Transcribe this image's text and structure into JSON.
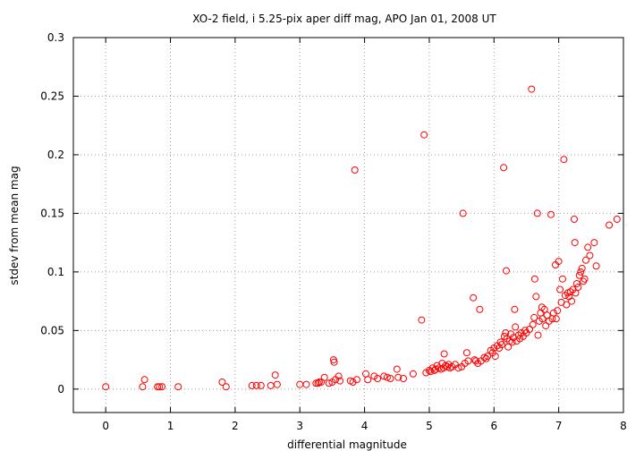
{
  "chart_data": {
    "type": "scatter",
    "title": "XO-2 field, i 5.25-pix aper diff mag, APO Jan 01, 2008 UT",
    "xlabel": "differential magnitude",
    "ylabel": "stdev from mean mag",
    "xlim": [
      -0.5,
      8
    ],
    "ylim": [
      -0.02,
      0.3
    ],
    "xticks": [
      0,
      1,
      2,
      3,
      4,
      5,
      6,
      7,
      8
    ],
    "yticks": [
      0,
      0.05,
      0.1,
      0.15,
      0.2,
      0.25,
      0.3
    ],
    "xtick_labels": [
      "0",
      "1",
      "2",
      "3",
      "4",
      "5",
      "6",
      "7",
      "8"
    ],
    "ytick_labels": [
      "0",
      "0.05",
      "0.1",
      "0.15",
      "0.2",
      "0.25",
      "0.3"
    ],
    "grid": true,
    "marker": "open-circle",
    "color": "#ff0000",
    "series": [
      {
        "points": [
          [
            0.0,
            0.002
          ],
          [
            0.57,
            0.002
          ],
          [
            0.6,
            0.008
          ],
          [
            0.8,
            0.002
          ],
          [
            0.83,
            0.002
          ],
          [
            0.87,
            0.002
          ],
          [
            1.12,
            0.002
          ],
          [
            1.8,
            0.006
          ],
          [
            1.86,
            0.002
          ],
          [
            2.26,
            0.003
          ],
          [
            2.33,
            0.003
          ],
          [
            2.4,
            0.003
          ],
          [
            2.55,
            0.003
          ],
          [
            2.62,
            0.012
          ],
          [
            2.65,
            0.004
          ],
          [
            3.0,
            0.004
          ],
          [
            3.1,
            0.004
          ],
          [
            3.25,
            0.005
          ],
          [
            3.28,
            0.005
          ],
          [
            3.3,
            0.006
          ],
          [
            3.33,
            0.006
          ],
          [
            3.38,
            0.01
          ],
          [
            3.45,
            0.005
          ],
          [
            3.5,
            0.006
          ],
          [
            3.52,
            0.025
          ],
          [
            3.53,
            0.023
          ],
          [
            3.55,
            0.008
          ],
          [
            3.6,
            0.011
          ],
          [
            3.62,
            0.007
          ],
          [
            3.78,
            0.007
          ],
          [
            3.82,
            0.006
          ],
          [
            3.85,
            0.187
          ],
          [
            3.88,
            0.008
          ],
          [
            4.02,
            0.013
          ],
          [
            4.05,
            0.008
          ],
          [
            4.15,
            0.011
          ],
          [
            4.2,
            0.009
          ],
          [
            4.3,
            0.011
          ],
          [
            4.35,
            0.01
          ],
          [
            4.4,
            0.009
          ],
          [
            4.5,
            0.017
          ],
          [
            4.52,
            0.01
          ],
          [
            4.6,
            0.009
          ],
          [
            4.75,
            0.013
          ],
          [
            4.88,
            0.059
          ],
          [
            4.92,
            0.217
          ],
          [
            4.95,
            0.014
          ],
          [
            5.0,
            0.016
          ],
          [
            5.02,
            0.015
          ],
          [
            5.05,
            0.018
          ],
          [
            5.08,
            0.016
          ],
          [
            5.1,
            0.017
          ],
          [
            5.12,
            0.02
          ],
          [
            5.15,
            0.018
          ],
          [
            5.18,
            0.017
          ],
          [
            5.2,
            0.022
          ],
          [
            5.22,
            0.018
          ],
          [
            5.23,
            0.03
          ],
          [
            5.25,
            0.02
          ],
          [
            5.28,
            0.019
          ],
          [
            5.3,
            0.021
          ],
          [
            5.32,
            0.018
          ],
          [
            5.35,
            0.019
          ],
          [
            5.4,
            0.021
          ],
          [
            5.45,
            0.018
          ],
          [
            5.5,
            0.019
          ],
          [
            5.52,
            0.15
          ],
          [
            5.55,
            0.022
          ],
          [
            5.58,
            0.031
          ],
          [
            5.6,
            0.024
          ],
          [
            5.68,
            0.078
          ],
          [
            5.7,
            0.025
          ],
          [
            5.72,
            0.024
          ],
          [
            5.75,
            0.022
          ],
          [
            5.78,
            0.068
          ],
          [
            5.8,
            0.024
          ],
          [
            5.85,
            0.027
          ],
          [
            5.88,
            0.026
          ],
          [
            5.9,
            0.028
          ],
          [
            5.95,
            0.033
          ],
          [
            5.98,
            0.031
          ],
          [
            6.0,
            0.035
          ],
          [
            6.02,
            0.028
          ],
          [
            6.05,
            0.037
          ],
          [
            6.08,
            0.035
          ],
          [
            6.1,
            0.04
          ],
          [
            6.12,
            0.038
          ],
          [
            6.15,
            0.189
          ],
          [
            6.16,
            0.045
          ],
          [
            6.18,
            0.048
          ],
          [
            6.19,
            0.101
          ],
          [
            6.2,
            0.043
          ],
          [
            6.22,
            0.036
          ],
          [
            6.24,
            0.041
          ],
          [
            6.26,
            0.047
          ],
          [
            6.28,
            0.04
          ],
          [
            6.3,
            0.044
          ],
          [
            6.32,
            0.068
          ],
          [
            6.33,
            0.053
          ],
          [
            6.35,
            0.041
          ],
          [
            6.38,
            0.046
          ],
          [
            6.4,
            0.043
          ],
          [
            6.42,
            0.048
          ],
          [
            6.45,
            0.045
          ],
          [
            6.48,
            0.05
          ],
          [
            6.5,
            0.048
          ],
          [
            6.55,
            0.051
          ],
          [
            6.58,
            0.256
          ],
          [
            6.6,
            0.055
          ],
          [
            6.62,
            0.061
          ],
          [
            6.63,
            0.094
          ],
          [
            6.65,
            0.079
          ],
          [
            6.67,
            0.15
          ],
          [
            6.68,
            0.046
          ],
          [
            6.7,
            0.058
          ],
          [
            6.72,
            0.065
          ],
          [
            6.74,
            0.07
          ],
          [
            6.75,
            0.06
          ],
          [
            6.78,
            0.068
          ],
          [
            6.8,
            0.054
          ],
          [
            6.82,
            0.063
          ],
          [
            6.85,
            0.058
          ],
          [
            6.88,
            0.149
          ],
          [
            6.9,
            0.06
          ],
          [
            6.92,
            0.065
          ],
          [
            6.95,
            0.106
          ],
          [
            6.96,
            0.06
          ],
          [
            6.98,
            0.067
          ],
          [
            7.0,
            0.109
          ],
          [
            7.02,
            0.085
          ],
          [
            7.04,
            0.074
          ],
          [
            7.06,
            0.094
          ],
          [
            7.08,
            0.196
          ],
          [
            7.1,
            0.08
          ],
          [
            7.12,
            0.072
          ],
          [
            7.14,
            0.082
          ],
          [
            7.16,
            0.079
          ],
          [
            7.18,
            0.083
          ],
          [
            7.2,
            0.075
          ],
          [
            7.22,
            0.085
          ],
          [
            7.24,
            0.145
          ],
          [
            7.25,
            0.125
          ],
          [
            7.26,
            0.082
          ],
          [
            7.28,
            0.09
          ],
          [
            7.3,
            0.087
          ],
          [
            7.32,
            0.097
          ],
          [
            7.34,
            0.1
          ],
          [
            7.36,
            0.103
          ],
          [
            7.38,
            0.092
          ],
          [
            7.4,
            0.094
          ],
          [
            7.42,
            0.11
          ],
          [
            7.45,
            0.121
          ],
          [
            7.48,
            0.114
          ],
          [
            7.55,
            0.125
          ],
          [
            7.58,
            0.105
          ],
          [
            7.78,
            0.14
          ],
          [
            7.9,
            0.145
          ]
        ]
      }
    ]
  }
}
